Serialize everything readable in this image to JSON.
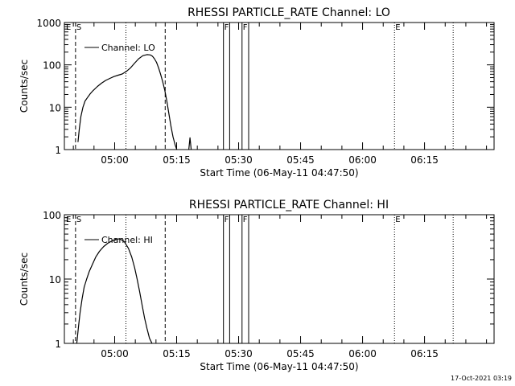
{
  "colors": {
    "background": "#ffffff",
    "ink": "#000000"
  },
  "footer": {
    "timestamp": "17-Oct-2021 03:19"
  },
  "chart_data": [
    {
      "type": "line",
      "title": "RHESSI PARTICLE_RATE Channel: LO",
      "xlabel": "Start Time (06-May-11 04:47:50)",
      "ylabel": "Counts/sec",
      "x_axis": "time (minutes after 04:47:50)",
      "xlim": [
        0,
        104
      ],
      "ylim": [
        1,
        1000
      ],
      "yscale": "log",
      "xticks": [
        {
          "x": 12.17,
          "label": "05:00"
        },
        {
          "x": 27.17,
          "label": "05:15"
        },
        {
          "x": 42.17,
          "label": "05:30"
        },
        {
          "x": 57.17,
          "label": "05:45"
        },
        {
          "x": 72.17,
          "label": "06:00"
        },
        {
          "x": 87.17,
          "label": "06:15"
        }
      ],
      "yticks": [
        {
          "y": 1,
          "label": "1"
        },
        {
          "y": 10,
          "label": "10"
        },
        {
          "y": 100,
          "label": "100"
        },
        {
          "y": 1000,
          "label": "1000"
        }
      ],
      "legend": {
        "location": "top-left",
        "label": "Channel: LO"
      },
      "series": [
        {
          "name": "Channel: LO",
          "x": [
            3.3,
            3.6,
            4.0,
            4.5,
            5.0,
            5.6,
            6.3,
            7.0,
            8.0,
            9.0,
            10.0,
            11.0,
            12.0,
            13.0,
            14.0,
            15.0,
            16.0,
            17.0,
            18.0,
            19.0,
            20.0,
            20.8,
            21.3,
            21.8,
            22.3,
            22.8,
            23.3,
            23.8,
            24.3,
            24.8,
            25.3,
            25.8,
            26.3,
            26.8,
            27.2
          ],
          "y": [
            1.5,
            3,
            6,
            10,
            14,
            17,
            21,
            25,
            31,
            37,
            43,
            48,
            53,
            57,
            61,
            70,
            85,
            110,
            140,
            165,
            175,
            172,
            160,
            140,
            115,
            85,
            60,
            40,
            25,
            14,
            7,
            3.5,
            2,
            1.3,
            1
          ]
        },
        {
          "name": "",
          "x": [
            30.1,
            30.4,
            30.7
          ],
          "y": [
            1,
            1.9,
            1
          ]
        }
      ],
      "vlines": [
        {
          "x": 2.7,
          "style": "dashed",
          "label": "S"
        },
        {
          "x": 14.9,
          "style": "dotted",
          "label": ""
        },
        {
          "x": 24.4,
          "style": "dashed",
          "label": ""
        },
        {
          "x": 38.5,
          "style": "solid",
          "label": "F"
        },
        {
          "x": 40.0,
          "style": "solid",
          "label": ""
        },
        {
          "x": 43.0,
          "style": "solid",
          "label": "F"
        },
        {
          "x": 44.6,
          "style": "solid",
          "label": ""
        },
        {
          "x": 79.9,
          "style": "dotted",
          "label": "E"
        },
        {
          "x": 94.1,
          "style": "dotted",
          "label": ""
        }
      ],
      "edge_markers": [
        "E"
      ]
    },
    {
      "type": "line",
      "title": "RHESSI PARTICLE_RATE Channel: HI",
      "xlabel": "Start Time (06-May-11 04:47:50)",
      "ylabel": "Counts/sec",
      "x_axis": "time (minutes after 04:47:50)",
      "xlim": [
        0,
        104
      ],
      "ylim": [
        1,
        100
      ],
      "yscale": "log",
      "xticks": [
        {
          "x": 12.17,
          "label": "05:00"
        },
        {
          "x": 27.17,
          "label": "05:15"
        },
        {
          "x": 42.17,
          "label": "05:30"
        },
        {
          "x": 57.17,
          "label": "05:45"
        },
        {
          "x": 72.17,
          "label": "06:00"
        },
        {
          "x": 87.17,
          "label": "06:15"
        }
      ],
      "yticks": [
        {
          "y": 1,
          "label": "1"
        },
        {
          "y": 10,
          "label": "10"
        },
        {
          "y": 100,
          "label": "100"
        }
      ],
      "legend": {
        "location": "top-left",
        "label": "Channel: HI"
      },
      "series": [
        {
          "name": "Channel: HI",
          "x": [
            3.0,
            3.4,
            3.8,
            4.3,
            4.8,
            5.4,
            6.0,
            6.8,
            7.6,
            8.5,
            9.5,
            10.5,
            11.5,
            12.5,
            13.5,
            14.5,
            15.5,
            16.3,
            17.0,
            17.6,
            18.2,
            18.8,
            19.4,
            20.0,
            20.6,
            21.2
          ],
          "y": [
            1,
            1.8,
            3,
            5,
            7.5,
            10,
            13,
            17,
            22,
            27,
            32,
            36,
            39,
            42,
            42,
            38,
            30,
            22,
            15,
            10,
            6.5,
            4,
            2.5,
            1.7,
            1.2,
            1
          ]
        }
      ],
      "vlines": [
        {
          "x": 2.7,
          "style": "dashed",
          "label": "S"
        },
        {
          "x": 14.9,
          "style": "dotted",
          "label": ""
        },
        {
          "x": 24.4,
          "style": "dashed",
          "label": ""
        },
        {
          "x": 38.5,
          "style": "solid",
          "label": "F"
        },
        {
          "x": 40.0,
          "style": "solid",
          "label": ""
        },
        {
          "x": 43.0,
          "style": "solid",
          "label": "F"
        },
        {
          "x": 44.6,
          "style": "solid",
          "label": ""
        },
        {
          "x": 79.9,
          "style": "dotted",
          "label": "E"
        },
        {
          "x": 94.1,
          "style": "dotted",
          "label": ""
        }
      ],
      "edge_markers": [
        "E"
      ]
    }
  ]
}
